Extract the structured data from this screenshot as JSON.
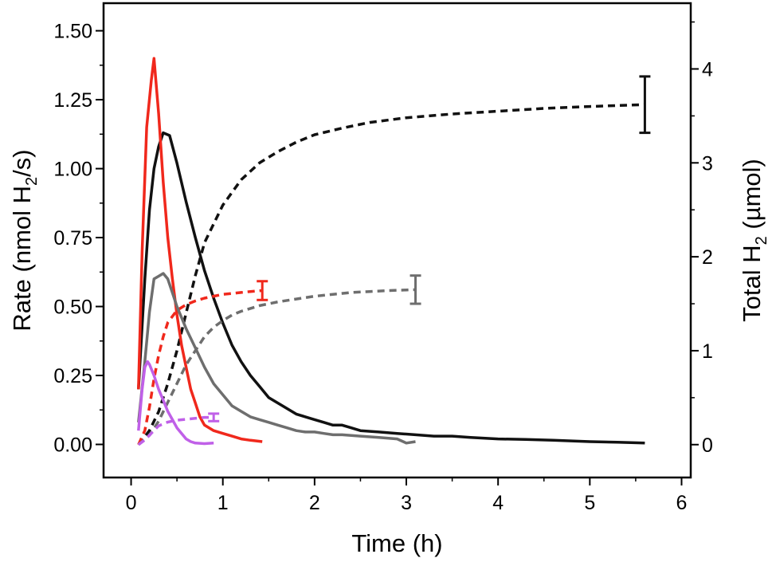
{
  "chart_data": {
    "type": "line",
    "xlabel": "Time (h)",
    "ylabel": {
      "prefix": "Rate (nmol H",
      "sub": "2",
      "suffix": "/s)"
    },
    "y2label": {
      "prefix": "Total H",
      "sub": "2",
      "suffix": " (µmol)"
    },
    "xlim": [
      -0.3,
      6.1
    ],
    "ylim": [
      -0.12,
      1.6
    ],
    "y2lim": [
      -0.35,
      4.7
    ],
    "x_ticks": [
      0,
      1,
      2,
      3,
      4,
      5,
      6
    ],
    "y_ticks": [
      "0.00",
      "0.25",
      "0.50",
      "0.75",
      "1.00",
      "1.25",
      "1.50"
    ],
    "y2_ticks": [
      0,
      1,
      2,
      3,
      4
    ],
    "grid": false,
    "colors": {
      "black": "#111111",
      "red": "#f0281c",
      "gray": "#6e6e6e",
      "purple": "#c060e8"
    },
    "series": [
      {
        "color": "black",
        "kind": "rate",
        "axis": "left",
        "x": [
          0.08,
          0.15,
          0.2,
          0.25,
          0.3,
          0.35,
          0.42,
          0.5,
          0.6,
          0.7,
          0.8,
          0.9,
          1.0,
          1.1,
          1.2,
          1.3,
          1.4,
          1.5,
          1.6,
          1.7,
          1.8,
          1.9,
          2.0,
          2.1,
          2.2,
          2.3,
          2.4,
          2.5,
          2.7,
          2.9,
          3.1,
          3.3,
          3.5,
          3.7,
          4.0,
          4.3,
          4.6,
          5.0,
          5.3,
          5.6
        ],
        "y": [
          0.2,
          0.6,
          0.85,
          1.0,
          1.08,
          1.13,
          1.12,
          1.02,
          0.88,
          0.75,
          0.63,
          0.53,
          0.44,
          0.36,
          0.3,
          0.25,
          0.21,
          0.17,
          0.15,
          0.13,
          0.11,
          0.1,
          0.09,
          0.08,
          0.07,
          0.07,
          0.06,
          0.05,
          0.045,
          0.04,
          0.035,
          0.03,
          0.03,
          0.025,
          0.02,
          0.018,
          0.015,
          0.01,
          0.008,
          0.005
        ]
      },
      {
        "color": "black",
        "kind": "total",
        "axis": "right",
        "x": [
          0.08,
          0.2,
          0.3,
          0.4,
          0.5,
          0.6,
          0.7,
          0.8,
          1.0,
          1.2,
          1.4,
          1.6,
          1.8,
          2.0,
          2.3,
          2.6,
          3.0,
          3.5,
          4.0,
          4.5,
          5.0,
          5.6
        ],
        "y": [
          0.0,
          0.15,
          0.35,
          0.65,
          1.0,
          1.4,
          1.8,
          2.15,
          2.55,
          2.82,
          3.0,
          3.12,
          3.22,
          3.3,
          3.37,
          3.43,
          3.48,
          3.52,
          3.55,
          3.58,
          3.6,
          3.62
        ],
        "error_bar": {
          "x": 5.6,
          "y": 3.62,
          "low": 3.32,
          "high": 3.92
        }
      },
      {
        "color": "red",
        "kind": "rate",
        "axis": "left",
        "x": [
          0.08,
          0.12,
          0.17,
          0.22,
          0.25,
          0.3,
          0.35,
          0.4,
          0.45,
          0.5,
          0.55,
          0.6,
          0.65,
          0.7,
          0.75,
          0.8,
          0.9,
          1.0,
          1.1,
          1.2,
          1.3,
          1.43
        ],
        "y": [
          0.2,
          0.7,
          1.15,
          1.32,
          1.4,
          1.2,
          0.95,
          0.75,
          0.6,
          0.47,
          0.36,
          0.28,
          0.2,
          0.15,
          0.1,
          0.07,
          0.05,
          0.04,
          0.03,
          0.02,
          0.015,
          0.01
        ]
      },
      {
        "color": "red",
        "kind": "total",
        "axis": "right",
        "x": [
          0.08,
          0.15,
          0.2,
          0.25,
          0.3,
          0.35,
          0.4,
          0.5,
          0.6,
          0.7,
          0.8,
          0.9,
          1.0,
          1.1,
          1.2,
          1.3,
          1.43
        ],
        "y": [
          0.0,
          0.15,
          0.4,
          0.7,
          0.95,
          1.15,
          1.3,
          1.43,
          1.49,
          1.53,
          1.56,
          1.58,
          1.6,
          1.61,
          1.62,
          1.63,
          1.64
        ],
        "error_bar": {
          "x": 1.43,
          "y": 1.64,
          "low": 1.54,
          "high": 1.74
        }
      },
      {
        "color": "gray",
        "kind": "rate",
        "axis": "left",
        "x": [
          0.08,
          0.15,
          0.2,
          0.25,
          0.3,
          0.35,
          0.4,
          0.45,
          0.5,
          0.6,
          0.7,
          0.8,
          0.9,
          1.0,
          1.1,
          1.2,
          1.3,
          1.4,
          1.5,
          1.6,
          1.7,
          1.8,
          1.9,
          2.0,
          2.1,
          2.2,
          2.3,
          2.5,
          2.7,
          2.9,
          3.0,
          3.1
        ],
        "y": [
          0.08,
          0.3,
          0.48,
          0.6,
          0.61,
          0.62,
          0.6,
          0.55,
          0.5,
          0.42,
          0.35,
          0.28,
          0.22,
          0.18,
          0.14,
          0.12,
          0.1,
          0.09,
          0.08,
          0.07,
          0.06,
          0.05,
          0.045,
          0.045,
          0.04,
          0.035,
          0.035,
          0.03,
          0.025,
          0.02,
          0.005,
          0.01
        ]
      },
      {
        "color": "gray",
        "kind": "total",
        "axis": "right",
        "x": [
          0.08,
          0.2,
          0.3,
          0.4,
          0.5,
          0.6,
          0.7,
          0.8,
          0.9,
          1.0,
          1.1,
          1.2,
          1.4,
          1.6,
          1.8,
          2.0,
          2.2,
          2.4,
          2.6,
          2.8,
          3.1
        ],
        "y": [
          0.0,
          0.1,
          0.25,
          0.45,
          0.65,
          0.85,
          1.0,
          1.15,
          1.25,
          1.32,
          1.38,
          1.42,
          1.48,
          1.52,
          1.55,
          1.58,
          1.6,
          1.62,
          1.63,
          1.64,
          1.65
        ],
        "error_bar": {
          "x": 3.1,
          "y": 1.65,
          "low": 1.5,
          "high": 1.8
        }
      },
      {
        "color": "purple",
        "kind": "rate",
        "axis": "left",
        "x": [
          0.08,
          0.12,
          0.15,
          0.18,
          0.2,
          0.25,
          0.3,
          0.35,
          0.4,
          0.45,
          0.5,
          0.55,
          0.6,
          0.65,
          0.7,
          0.8,
          0.9
        ],
        "y": [
          0.05,
          0.2,
          0.28,
          0.3,
          0.29,
          0.25,
          0.2,
          0.16,
          0.12,
          0.09,
          0.06,
          0.04,
          0.02,
          0.01,
          0.005,
          0.003,
          0.005
        ]
      },
      {
        "color": "purple",
        "kind": "total",
        "axis": "right",
        "x": [
          0.08,
          0.15,
          0.2,
          0.25,
          0.3,
          0.35,
          0.4,
          0.5,
          0.6,
          0.7,
          0.8,
          0.9
        ],
        "y": [
          0.0,
          0.05,
          0.1,
          0.15,
          0.2,
          0.22,
          0.24,
          0.26,
          0.27,
          0.28,
          0.29,
          0.29
        ],
        "error_bar": {
          "x": 0.9,
          "y": 0.29,
          "low": 0.25,
          "high": 0.33
        }
      }
    ]
  }
}
